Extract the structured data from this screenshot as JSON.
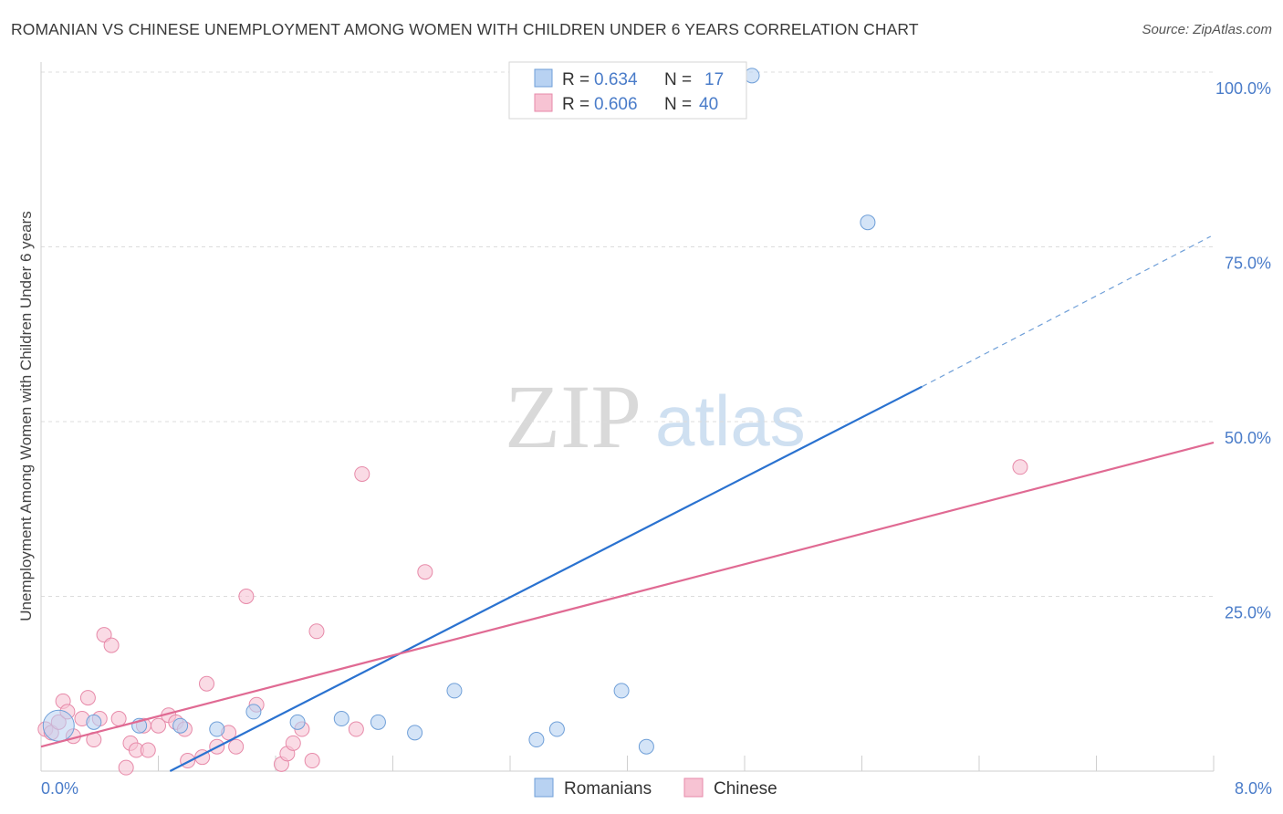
{
  "header": {
    "title": "ROMANIAN VS CHINESE UNEMPLOYMENT AMONG WOMEN WITH CHILDREN UNDER 6 YEARS CORRELATION CHART",
    "source": "Source: ZipAtlas.com"
  },
  "watermark": {
    "zip": "ZIP",
    "atlas": "atlas"
  },
  "colors": {
    "romanian_fill": "#b8d2f2",
    "romanian_stroke": "#6f9fd8",
    "romanian_line": "#2a72d0",
    "chinese_fill": "#f7c3d3",
    "chinese_stroke": "#e78aa9",
    "chinese_line": "#e06a93",
    "grid": "#dcdcdc",
    "accent_text": "#4a7cc9"
  },
  "stats_legend": [
    {
      "r_label": "R = ",
      "r_value": "0.634",
      "n_label": "N = ",
      "n_value": "17"
    },
    {
      "r_label": "R = ",
      "r_value": "0.606",
      "n_label": "N = ",
      "n_value": "40"
    }
  ],
  "chart_data": {
    "type": "scatter",
    "title": "ROMANIAN VS CHINESE UNEMPLOYMENT AMONG WOMEN WITH CHILDREN UNDER 6 YEARS CORRELATION CHART",
    "xlabel": "",
    "ylabel": "Unemployment Among Women with Children Under 6 years",
    "xlim": [
      0,
      8
    ],
    "ylim": [
      0,
      100
    ],
    "x_tick_labels": [
      "0.0%",
      "8.0%"
    ],
    "y_ticks": [
      25,
      50,
      75,
      100
    ],
    "y_tick_labels": [
      "25.0%",
      "50.0%",
      "75.0%",
      "100.0%"
    ],
    "grid": true,
    "legend": "bottom",
    "series": [
      {
        "name": "Romanians",
        "r": 0.634,
        "n": 17,
        "trend": {
          "x0": 0.88,
          "y0": 0.0,
          "x1": 6.01,
          "y1": 55.0,
          "dash_to_x": 7.98,
          "dash_to_y": 76.5
        },
        "points": [
          {
            "x": 0.12,
            "y": 6.5,
            "big": true
          },
          {
            "x": 0.36,
            "y": 7.0
          },
          {
            "x": 0.67,
            "y": 6.5
          },
          {
            "x": 0.95,
            "y": 6.5
          },
          {
            "x": 1.2,
            "y": 6.0
          },
          {
            "x": 1.45,
            "y": 8.5
          },
          {
            "x": 1.75,
            "y": 7.0
          },
          {
            "x": 2.05,
            "y": 7.5
          },
          {
            "x": 2.3,
            "y": 7.0
          },
          {
            "x": 2.55,
            "y": 5.5
          },
          {
            "x": 2.82,
            "y": 11.5
          },
          {
            "x": 3.38,
            "y": 4.5
          },
          {
            "x": 3.52,
            "y": 6.0
          },
          {
            "x": 3.96,
            "y": 11.5
          },
          {
            "x": 4.13,
            "y": 3.5
          },
          {
            "x": 4.85,
            "y": 99.5
          },
          {
            "x": 5.64,
            "y": 78.5
          }
        ]
      },
      {
        "name": "Chinese",
        "r": 0.606,
        "n": 40,
        "trend": {
          "x0": 0.0,
          "y0": 3.5,
          "x1": 8.0,
          "y1": 47.0
        },
        "points": [
          {
            "x": 0.03,
            "y": 6.0
          },
          {
            "x": 0.07,
            "y": 5.5
          },
          {
            "x": 0.12,
            "y": 7.0
          },
          {
            "x": 0.15,
            "y": 10.0
          },
          {
            "x": 0.18,
            "y": 8.5
          },
          {
            "x": 0.22,
            "y": 5.0
          },
          {
            "x": 0.28,
            "y": 7.5
          },
          {
            "x": 0.32,
            "y": 10.5
          },
          {
            "x": 0.36,
            "y": 4.5
          },
          {
            "x": 0.4,
            "y": 7.5
          },
          {
            "x": 0.43,
            "y": 19.5
          },
          {
            "x": 0.48,
            "y": 18.0
          },
          {
            "x": 0.53,
            "y": 7.5
          },
          {
            "x": 0.58,
            "y": 0.5
          },
          {
            "x": 0.61,
            "y": 4.0
          },
          {
            "x": 0.65,
            "y": 3.0
          },
          {
            "x": 0.7,
            "y": 6.5
          },
          {
            "x": 0.73,
            "y": 3.0
          },
          {
            "x": 0.8,
            "y": 6.5
          },
          {
            "x": 0.87,
            "y": 8.0
          },
          {
            "x": 0.92,
            "y": 7.0
          },
          {
            "x": 0.98,
            "y": 6.0
          },
          {
            "x": 1.0,
            "y": 1.5
          },
          {
            "x": 1.1,
            "y": 2.0
          },
          {
            "x": 1.13,
            "y": 12.5
          },
          {
            "x": 1.2,
            "y": 3.5
          },
          {
            "x": 1.28,
            "y": 5.5
          },
          {
            "x": 1.33,
            "y": 3.5
          },
          {
            "x": 1.4,
            "y": 25.0
          },
          {
            "x": 1.47,
            "y": 9.5
          },
          {
            "x": 1.64,
            "y": 1.0
          },
          {
            "x": 1.68,
            "y": 2.5
          },
          {
            "x": 1.72,
            "y": 4.0
          },
          {
            "x": 1.78,
            "y": 6.0
          },
          {
            "x": 1.85,
            "y": 1.5
          },
          {
            "x": 1.88,
            "y": 20.0
          },
          {
            "x": 2.15,
            "y": 6.0
          },
          {
            "x": 2.19,
            "y": 42.5
          },
          {
            "x": 2.62,
            "y": 28.5
          },
          {
            "x": 6.68,
            "y": 43.5
          }
        ]
      }
    ]
  }
}
